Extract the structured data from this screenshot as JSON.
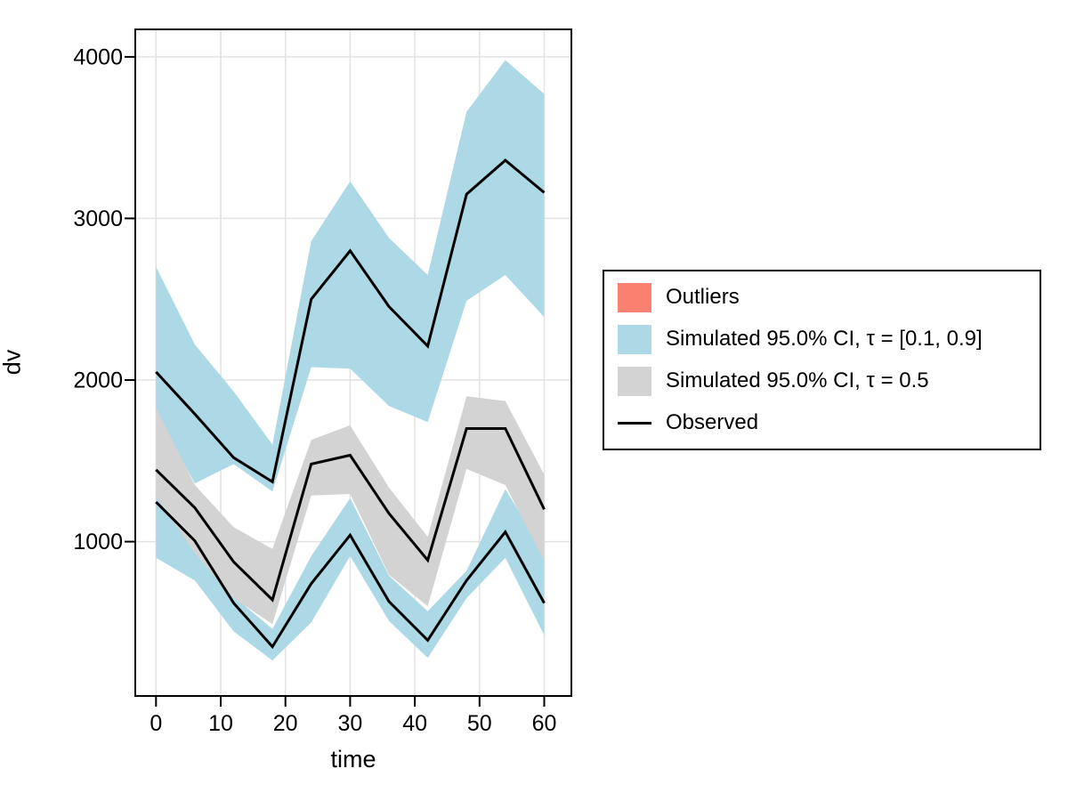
{
  "figure": {
    "background_color": "#ffffff",
    "axis": {
      "xlabel": "time",
      "ylabel": "dv",
      "x_ticks": [
        0,
        10,
        20,
        30,
        40,
        50,
        60
      ],
      "y_ticks": [
        1000,
        2000,
        3000,
        4000
      ],
      "xlim": [
        -3.2,
        64.2
      ],
      "ylim": [
        45,
        4170
      ],
      "grid": true,
      "grid_color": "#e2e2e2",
      "frame_color": "#000000",
      "tick_color": "#000000"
    },
    "legend": {
      "position": "right-outside",
      "border_color": "#000000",
      "background_color": "#ffffff",
      "items": [
        {
          "label": "Outliers",
          "type": "patch",
          "color": "#FA8072"
        },
        {
          "label": "Simulated 95.0% CI, τ = [0.1, 0.9]",
          "type": "patch",
          "color": "#ADD8E6"
        },
        {
          "label": "Simulated 95.0% CI, τ = 0.5",
          "type": "patch",
          "color": "#D3D3D3"
        },
        {
          "label": "Observed",
          "type": "line",
          "color": "#000000"
        }
      ]
    }
  },
  "chart_data": {
    "type": "area",
    "title": "",
    "xlabel": "time",
    "ylabel": "dv",
    "grid": true,
    "legend_position": "right-outside",
    "xlim": [
      -3.2,
      64.2
    ],
    "ylim": [
      45,
      4170
    ],
    "x_ticks": [
      0,
      10,
      20,
      30,
      40,
      50,
      60
    ],
    "y_ticks": [
      1000,
      2000,
      3000,
      4000
    ],
    "x": [
      0,
      6,
      12,
      18,
      24,
      30,
      36,
      42,
      48,
      54,
      60
    ],
    "bands": [
      {
        "name": "Simulated 95.0% CI, τ = [0.1, 0.9] — upper (90th percentile) band",
        "color": "#ADD8E6",
        "upper": [
          2700,
          2220,
          1930,
          1600,
          2860,
          3230,
          2880,
          2650,
          3660,
          3980,
          3770
        ],
        "lower": [
          1800,
          1360,
          1480,
          1310,
          2080,
          2070,
          1840,
          1740,
          2490,
          2650,
          2390
        ]
      },
      {
        "name": "Simulated 95.0% CI, τ = [0.1, 0.9] — lower (10th percentile) band",
        "color": "#ADD8E6",
        "upper": [
          1280,
          1090,
          660,
          460,
          910,
          1270,
          790,
          570,
          820,
          1325,
          930
        ],
        "lower": [
          900,
          760,
          445,
          265,
          500,
          910,
          510,
          280,
          650,
          900,
          420
        ]
      },
      {
        "name": "Simulated 95.0% CI, τ = 0.5 — median band",
        "color": "#D3D3D3",
        "upper": [
          1830,
          1350,
          1090,
          955,
          1630,
          1720,
          1335,
          1030,
          1900,
          1870,
          1415
        ],
        "lower": [
          1280,
          930,
          650,
          490,
          1285,
          1295,
          795,
          600,
          1450,
          1350,
          880
        ]
      }
    ],
    "lines": [
      {
        "name": "Observed — 90th percentile",
        "color": "#000000",
        "values": [
          2050,
          1790,
          1520,
          1370,
          2500,
          2800,
          2455,
          2210,
          3150,
          3360,
          3160
        ]
      },
      {
        "name": "Observed — median",
        "color": "#000000",
        "values": [
          1445,
          1210,
          875,
          640,
          1480,
          1535,
          1175,
          885,
          1700,
          1700,
          1200
        ]
      },
      {
        "name": "Observed — 10th percentile",
        "color": "#000000",
        "values": [
          1245,
          1005,
          620,
          350,
          740,
          1040,
          630,
          390,
          760,
          1060,
          620
        ]
      }
    ]
  }
}
